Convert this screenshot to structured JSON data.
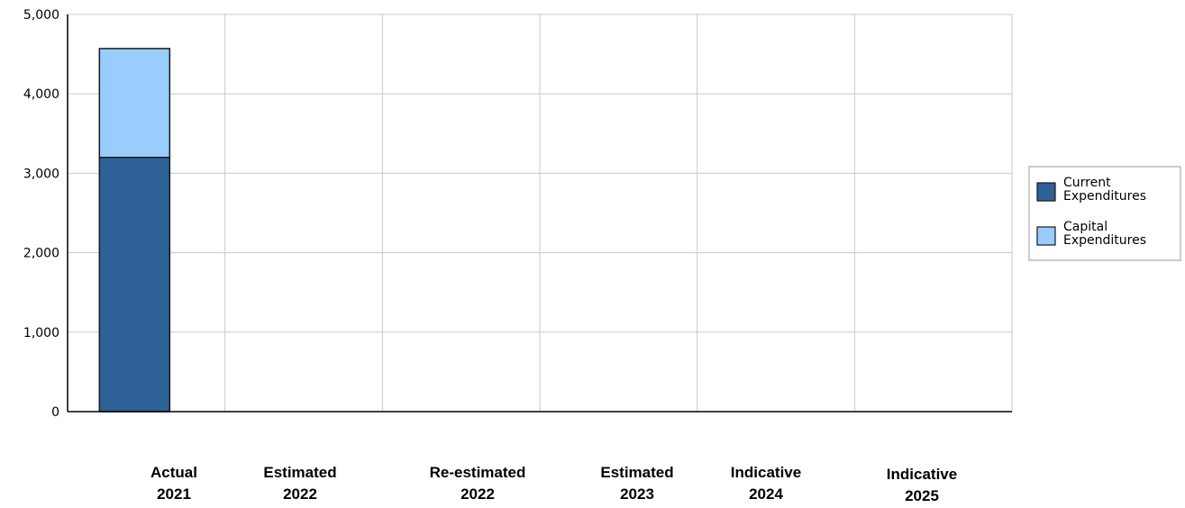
{
  "chart_data": {
    "type": "bar",
    "stacked": true,
    "categories": [
      [
        "Actual",
        "2021"
      ],
      [
        "Estimated",
        "2022"
      ],
      [
        "Re-estimated",
        "2022"
      ],
      [
        "Estimated",
        "2023"
      ],
      [
        "Indicative",
        "2024"
      ],
      [
        "Indicative",
        "2025"
      ]
    ],
    "series": [
      {
        "name": [
          "Current",
          "Expenditures"
        ],
        "color": "#2e6196",
        "values": [
          3200,
          0,
          0,
          0,
          0,
          0
        ]
      },
      {
        "name": [
          "Capital",
          "Expenditures"
        ],
        "color": "#99ccff",
        "values": [
          1370,
          0,
          0,
          0,
          0,
          0
        ]
      }
    ],
    "ylim": [
      0,
      5000
    ],
    "yticks": [
      "0",
      "1,000",
      "2,000",
      "3,000",
      "4,000",
      "5,000"
    ],
    "grid": true,
    "legend": "right"
  }
}
